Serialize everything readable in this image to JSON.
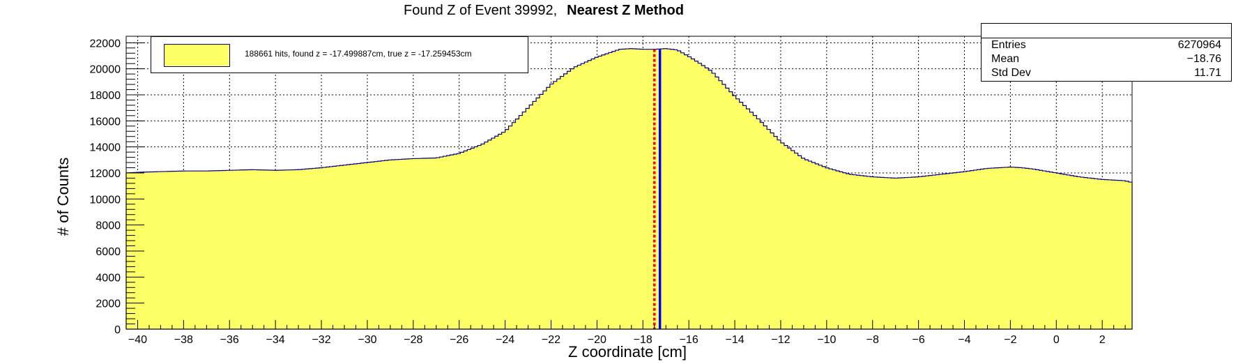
{
  "title": "Found Z of Event 39992,",
  "title_bold": "Nearest Z Method",
  "stats": {
    "rows": [
      {
        "label": "Entries",
        "value": "6270964"
      },
      {
        "label": "Mean",
        "value": "−18.76"
      },
      {
        "label": "Std Dev",
        "value": "11.71"
      }
    ]
  },
  "legend": {
    "entry": "188661 hits, found z = -17.499887cm, true z = -17.259453cm"
  },
  "colors": {
    "fill": "#ffff66",
    "outline": "#000080",
    "found_line": "#ff0000",
    "true_line": "#0000ff",
    "grid": "#000000"
  },
  "chart_data": {
    "type": "area",
    "title": "Found Z of Event 39992, Nearest Z Method",
    "xlabel": "Z coordinate [cm]",
    "ylabel": "# of Counts",
    "xlim": [
      -40.5,
      3.3
    ],
    "ylim": [
      0,
      22500
    ],
    "xticks": [
      -40,
      -38,
      -36,
      -34,
      -32,
      -30,
      -28,
      -26,
      -24,
      -22,
      -20,
      -18,
      -16,
      -14,
      -12,
      -10,
      -8,
      -6,
      -4,
      -2,
      0,
      2
    ],
    "xtick_labels": [
      "−40",
      "−38",
      "−36",
      "−34",
      "−32",
      "−30",
      "−28",
      "−26",
      "−24",
      "−22",
      "−20",
      "−18",
      "−16",
      "−14",
      "−12",
      "−10",
      "−8",
      "−6",
      "−4",
      "−2",
      "0",
      "2"
    ],
    "yticks": [
      0,
      2000,
      4000,
      6000,
      8000,
      10000,
      12000,
      14000,
      16000,
      18000,
      20000,
      22000
    ],
    "grid": true,
    "x": [
      -40.5,
      -40,
      -39,
      -38,
      -37,
      -36,
      -35,
      -34,
      -33,
      -32,
      -31,
      -30,
      -29,
      -28,
      -27,
      -26,
      -25,
      -24,
      -23,
      -22,
      -21,
      -20,
      -19.5,
      -19,
      -18.5,
      -18,
      -17.5,
      -17,
      -16.5,
      -16,
      -15.5,
      -15,
      -14,
      -13,
      -12,
      -11,
      -10,
      -9,
      -8,
      -7,
      -6,
      -5,
      -4,
      -3,
      -2,
      -1.5,
      -1,
      0,
      1,
      2,
      3,
      3.2
    ],
    "y": [
      12000,
      12050,
      12100,
      12150,
      12150,
      12200,
      12250,
      12200,
      12250,
      12400,
      12600,
      12800,
      13000,
      13100,
      13150,
      13500,
      14200,
      15200,
      17000,
      18800,
      20100,
      20900,
      21200,
      21500,
      21550,
      21500,
      21500,
      21550,
      21450,
      20950,
      20400,
      19800,
      17900,
      16200,
      14400,
      13100,
      12400,
      11900,
      11700,
      11600,
      11700,
      11900,
      12100,
      12350,
      12450,
      12400,
      12300,
      12000,
      11700,
      11500,
      11400,
      11300
    ],
    "vlines": [
      {
        "x": -17.499887,
        "color": "#ff0000",
        "style": "dashed"
      },
      {
        "x": -17.259453,
        "color": "#0000ff",
        "style": "solid"
      }
    ]
  }
}
